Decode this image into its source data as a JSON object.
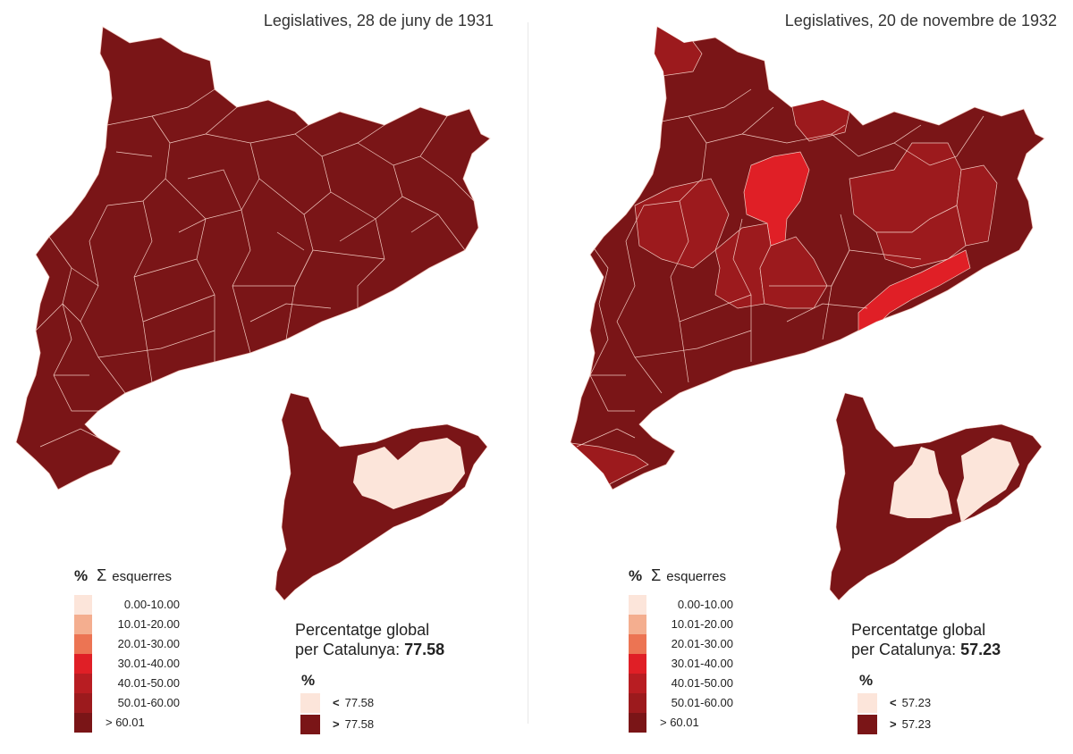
{
  "colors": {
    "darkest": "#7a1517",
    "class_50_60": "#9c1a1d",
    "class_40_50": "#b81d22",
    "class_30_40": "#e01f26",
    "class_20_30": "#ec7453",
    "class_10_20": "#f4ae8f",
    "class_0_10": "#fce5da",
    "border": "#f2c9c0"
  },
  "legend": {
    "percent_symbol": "%",
    "sigma_symbol": "Σ",
    "title": "esquerres",
    "classes": [
      {
        "label": "0.00-10.00",
        "color": "#fce5da"
      },
      {
        "label": "10.01-20.00",
        "color": "#f4ae8f"
      },
      {
        "label": "20.01-30.00",
        "color": "#ec7453"
      },
      {
        "label": "30.01-40.00",
        "color": "#e01f26"
      },
      {
        "label": "40.01-50.00",
        "color": "#b81d22"
      },
      {
        "label": "50.01-60.00",
        "color": "#9c1a1d"
      },
      {
        "label": "> 60.01",
        "color": "#7a1517"
      }
    ]
  },
  "panels": [
    {
      "title": "Legislatives, 28 de juny de 1931",
      "global_line1": "Percentatge global",
      "global_line2": "per Catalunya: ",
      "global_value": "77.58",
      "inset_legend": {
        "percent_symbol": "%",
        "below_prefix": "<",
        "below_value": "77.58",
        "above_prefix": ">",
        "above_value": "77.58"
      },
      "highlight_regions": [],
      "inset_light": "central"
    },
    {
      "title": "Legislatives, 20 de novembre de 1932",
      "global_line1": "Percentatge global",
      "global_line2": "per Catalunya: ",
      "global_value": "57.23",
      "inset_legend": {
        "percent_symbol": "%",
        "below_prefix": "<",
        "below_value": "57.23",
        "above_prefix": ">",
        "above_value": "57.23"
      },
      "highlight_regions": [
        {
          "region": "north-west tip",
          "class": "50.01-60.00"
        },
        {
          "region": "north pyrenees",
          "class": "50.01-60.00"
        },
        {
          "region": "west-central",
          "class": "50.01-60.00"
        },
        {
          "region": "central",
          "class": "30.01-40.00"
        },
        {
          "region": "central-south",
          "class": "50.01-60.00"
        },
        {
          "region": "east-central",
          "class": "50.01-60.00"
        },
        {
          "region": "coast",
          "class": "30.01-40.00"
        },
        {
          "region": "delta",
          "class": "50.01-60.00"
        }
      ],
      "inset_light": "split"
    }
  ]
}
